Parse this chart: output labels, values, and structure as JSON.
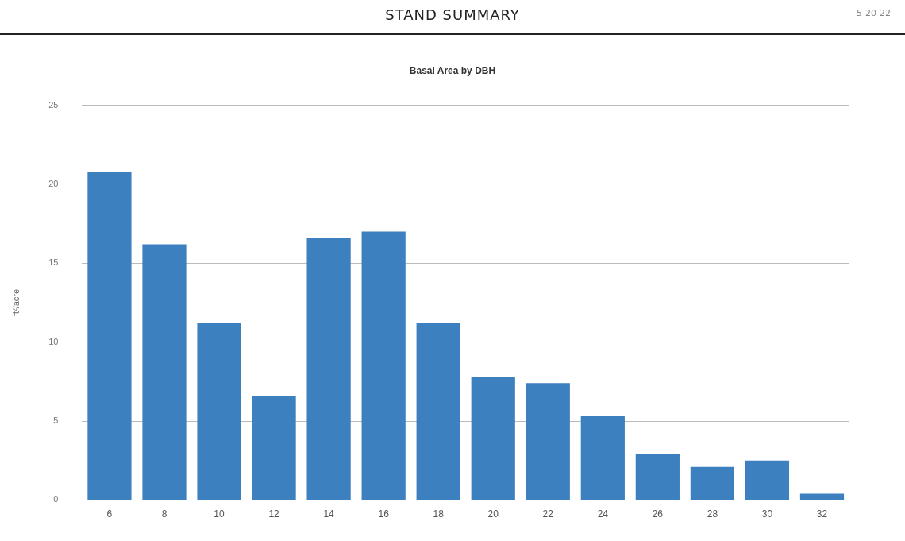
{
  "chart_data": {
    "type": "bar",
    "title": "STAND SUMMARY",
    "subtitle": "Basal Area by DBH",
    "annotations": [
      "5-20-22"
    ],
    "ylabel": "ft²/acre",
    "categories": [
      "6",
      "8",
      "10",
      "12",
      "14",
      "16",
      "18",
      "20",
      "22",
      "24",
      "26",
      "28",
      "30",
      "32"
    ],
    "values": [
      20.8,
      16.2,
      11.2,
      6.6,
      16.6,
      17.0,
      11.2,
      7.8,
      7.4,
      5.3,
      2.9,
      2.1,
      2.5,
      0.4
    ],
    "color": "#3d80bf",
    "ylim": [
      0,
      25
    ],
    "yticks": [
      0,
      5,
      10,
      15,
      20,
      25
    ],
    "grid": "y"
  }
}
